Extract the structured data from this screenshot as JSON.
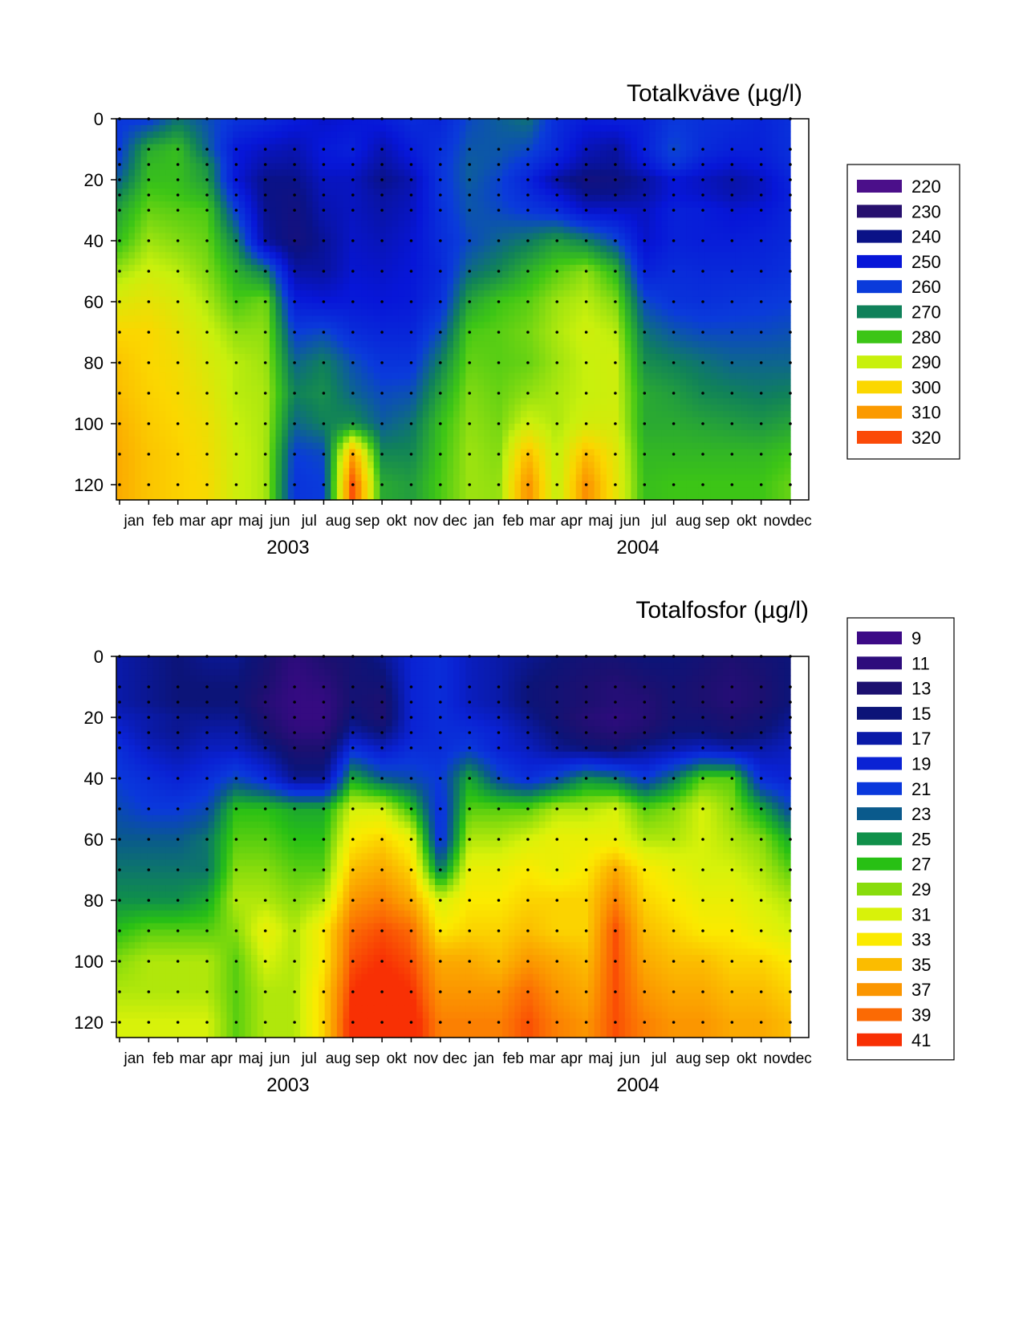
{
  "chart_data": [
    {
      "type": "heatmap",
      "title": "Totalkväve (µg/l)",
      "xlabel": "",
      "ylabel": "",
      "ylim": [
        125,
        0
      ],
      "yticks": [
        0,
        20,
        40,
        60,
        80,
        100,
        120
      ],
      "month_labels": [
        "jan",
        "feb",
        "mar",
        "apr",
        "maj",
        "jun",
        "jul",
        "aug",
        "sep",
        "okt",
        "nov",
        "dec",
        "jan",
        "feb",
        "mar",
        "apr",
        "maj",
        "jun",
        "jul",
        "aug",
        "sep",
        "okt",
        "nov",
        "dec"
      ],
      "year_labels": [
        "2003",
        "2004"
      ],
      "sample_depths": [
        0,
        10,
        15,
        20,
        25,
        30,
        40,
        50,
        60,
        70,
        80,
        90,
        100,
        110,
        120
      ],
      "sample_months": [
        0,
        1,
        2,
        3,
        4,
        5,
        6,
        7,
        8,
        9,
        10,
        11,
        12,
        13,
        14,
        15,
        16,
        17,
        18,
        19,
        20,
        21,
        22,
        23
      ],
      "legend": {
        "position": "right",
        "levels": [
          "220",
          "230",
          "240",
          "250",
          "260",
          "270",
          "280",
          "290",
          "300",
          "310",
          "320"
        ],
        "colors": [
          "#4b0f8a",
          "#27106e",
          "#0a1287",
          "#0716d8",
          "#0a3bdb",
          "#10815a",
          "#3cc516",
          "#c8f00d",
          "#fbd700",
          "#fb9a00",
          "#fb4a08"
        ]
      },
      "grid": [
        [
          259,
          259,
          268,
          263,
          258,
          256,
          252,
          248,
          250,
          252,
          256,
          254,
          262,
          265,
          268,
          256,
          252,
          253,
          253,
          259,
          257,
          256,
          254,
          257
        ],
        [
          260,
          276,
          279,
          266,
          251,
          247,
          245,
          251,
          253,
          245,
          252,
          257,
          264,
          264,
          262,
          255,
          246,
          243,
          253,
          262,
          256,
          253,
          253,
          257
        ],
        [
          262,
          278,
          279,
          272,
          251,
          244,
          243,
          250,
          250,
          243,
          249,
          258,
          265,
          263,
          258,
          251,
          243,
          242,
          250,
          259,
          252,
          249,
          251,
          256
        ],
        [
          266,
          279,
          279,
          274,
          250,
          240,
          240,
          247,
          247,
          240,
          245,
          258,
          265,
          261,
          254,
          243,
          237,
          238,
          243,
          250,
          247,
          244,
          247,
          254
        ],
        [
          271,
          281,
          280,
          277,
          255,
          240,
          238,
          246,
          247,
          243,
          246,
          258,
          264,
          261,
          256,
          250,
          241,
          241,
          244,
          250,
          248,
          245,
          247,
          253
        ],
        [
          275,
          283,
          282,
          281,
          260,
          241,
          237,
          245,
          247,
          244,
          247,
          257,
          264,
          262,
          259,
          256,
          248,
          248,
          247,
          253,
          252,
          249,
          250,
          254
        ],
        [
          279,
          287,
          285,
          283,
          270,
          243,
          236,
          242,
          248,
          246,
          249,
          256,
          262,
          266,
          269,
          274,
          270,
          262,
          248,
          253,
          252,
          252,
          253,
          255
        ],
        [
          287,
          291,
          289,
          285,
          277,
          270,
          244,
          243,
          249,
          248,
          250,
          255,
          267,
          271,
          277,
          282,
          286,
          278,
          253,
          256,
          255,
          255,
          255,
          257
        ],
        [
          294,
          296,
          293,
          288,
          281,
          284,
          252,
          250,
          251,
          250,
          251,
          257,
          275,
          280,
          282,
          287,
          289,
          285,
          262,
          258,
          257,
          258,
          259,
          260
        ],
        [
          300,
          300,
          296,
          291,
          286,
          286,
          260,
          262,
          256,
          254,
          254,
          263,
          281,
          282,
          284,
          288,
          291,
          289,
          268,
          264,
          262,
          262,
          262,
          263
        ],
        [
          303,
          300,
          298,
          293,
          289,
          287,
          266,
          270,
          263,
          258,
          258,
          270,
          283,
          282,
          283,
          287,
          290,
          291,
          272,
          270,
          268,
          266,
          266,
          266
        ],
        [
          304,
          301,
          299,
          295,
          289,
          288,
          270,
          272,
          266,
          262,
          263,
          275,
          285,
          283,
          286,
          288,
          290,
          291,
          276,
          274,
          271,
          270,
          269,
          270
        ],
        [
          306,
          302,
          300,
          297,
          290,
          288,
          266,
          270,
          272,
          265,
          268,
          279,
          286,
          284,
          291,
          288,
          292,
          292,
          276,
          276,
          275,
          274,
          273,
          275
        ],
        [
          307,
          303,
          301,
          298,
          291,
          288,
          260,
          262,
          309,
          271,
          271,
          280,
          287,
          285,
          305,
          289,
          305,
          295,
          278,
          278,
          278,
          278,
          278,
          280
        ],
        [
          307,
          303,
          301,
          299,
          291,
          288,
          258,
          260,
          320,
          276,
          274,
          281,
          287,
          286,
          312,
          289,
          312,
          296,
          279,
          280,
          280,
          280,
          280,
          283
        ]
      ]
    },
    {
      "type": "heatmap",
      "title": "Totalfosfor (µg/l)",
      "xlabel": "",
      "ylabel": "",
      "ylim": [
        125,
        0
      ],
      "yticks": [
        0,
        20,
        40,
        60,
        80,
        100,
        120
      ],
      "month_labels": [
        "jan",
        "feb",
        "mar",
        "apr",
        "maj",
        "jun",
        "jul",
        "aug",
        "sep",
        "okt",
        "nov",
        "dec",
        "jan",
        "feb",
        "mar",
        "apr",
        "maj",
        "jun",
        "jul",
        "aug",
        "sep",
        "okt",
        "nov",
        "dec"
      ],
      "year_labels": [
        "2003",
        "2004"
      ],
      "sample_depths": [
        0,
        10,
        15,
        20,
        25,
        30,
        40,
        50,
        60,
        70,
        80,
        90,
        100,
        110,
        120
      ],
      "sample_months": [
        0,
        1,
        2,
        3,
        4,
        5,
        6,
        7,
        8,
        9,
        10,
        11,
        12,
        13,
        14,
        15,
        16,
        17,
        18,
        19,
        20,
        21,
        22,
        23
      ],
      "legend": {
        "position": "right",
        "levels": [
          "9",
          "11",
          "13",
          "15",
          "17",
          "19",
          "21",
          "23",
          "25",
          "27",
          "29",
          "31",
          "33",
          "35",
          "37",
          "39",
          "41"
        ],
        "colors": [
          "#3c0a86",
          "#2d0c7c",
          "#1c1070",
          "#0c1478",
          "#0a1aa8",
          "#0a22d4",
          "#0a38dc",
          "#0a5a8c",
          "#10904a",
          "#28c014",
          "#88dc0c",
          "#d8f20a",
          "#fbea00",
          "#fbbc00",
          "#fb9600",
          "#fb6a04",
          "#f83004"
        ]
      },
      "grid": [
        [
          17,
          16,
          15,
          16,
          16,
          14,
          11,
          13,
          14,
          16,
          19,
          20,
          18,
          17,
          16,
          15,
          14,
          14,
          15,
          15,
          14,
          13,
          14,
          15
        ],
        [
          17,
          16,
          15,
          15,
          15,
          13,
          10,
          11,
          14,
          14,
          19,
          20,
          18,
          17,
          15,
          14,
          13,
          12,
          13,
          14,
          13,
          12,
          13,
          15
        ],
        [
          17,
          16,
          15,
          15,
          15,
          12,
          10,
          10,
          14,
          13,
          19,
          20,
          18,
          17,
          15,
          14,
          13,
          12,
          12,
          14,
          13,
          12,
          13,
          15
        ],
        [
          18,
          17,
          16,
          16,
          16,
          13,
          10,
          10,
          15,
          13,
          19,
          20,
          19,
          18,
          16,
          14,
          12,
          11,
          12,
          14,
          14,
          13,
          14,
          16
        ],
        [
          19,
          17,
          16,
          17,
          17,
          14,
          11,
          11,
          17,
          15,
          19,
          20,
          20,
          19,
          17,
          15,
          13,
          12,
          13,
          15,
          15,
          14,
          15,
          17
        ],
        [
          20,
          18,
          17,
          18,
          18,
          16,
          13,
          13,
          20,
          18,
          20,
          20,
          21,
          19,
          18,
          16,
          15,
          14,
          16,
          17,
          18,
          17,
          17,
          18
        ],
        [
          21,
          20,
          19,
          20,
          22,
          20,
          16,
          16,
          26,
          23,
          22,
          21,
          26,
          22,
          20,
          22,
          25,
          24,
          21,
          24,
          28,
          28,
          20,
          19
        ],
        [
          22,
          21,
          21,
          22,
          27,
          27,
          26,
          26,
          31,
          31,
          27,
          20,
          28,
          28,
          28,
          30,
          30,
          31,
          28,
          29,
          31,
          29,
          26,
          22
        ],
        [
          23,
          23,
          23,
          24,
          28,
          28,
          27,
          27,
          33,
          34,
          32,
          20,
          30,
          30,
          31,
          32,
          32,
          32,
          30,
          30,
          31,
          30,
          29,
          26
        ],
        [
          24,
          24,
          24,
          24,
          29,
          29,
          28,
          28,
          35,
          36,
          34,
          24,
          32,
          32,
          33,
          32,
          33,
          36,
          33,
          32,
          31,
          31,
          30,
          28
        ],
        [
          25,
          25,
          25,
          26,
          30,
          30,
          29,
          30,
          37,
          38,
          36,
          31,
          33,
          33,
          34,
          34,
          34,
          38,
          34,
          33,
          32,
          32,
          31,
          30
        ],
        [
          27,
          28,
          28,
          28,
          29,
          32,
          30,
          33,
          39,
          40,
          39,
          33,
          34,
          34,
          35,
          34,
          34,
          40,
          35,
          34,
          33,
          33,
          32,
          31
        ],
        [
          29,
          30,
          30,
          30,
          28,
          31,
          30,
          33,
          40,
          41,
          40,
          36,
          36,
          35,
          37,
          36,
          35,
          40,
          36,
          35,
          35,
          34,
          34,
          33
        ],
        [
          30,
          30,
          30,
          30,
          28,
          30,
          30,
          34,
          41,
          42,
          41,
          37,
          37,
          37,
          39,
          37,
          36,
          40,
          37,
          36,
          36,
          35,
          35,
          34
        ],
        [
          31,
          31,
          31,
          31,
          28,
          30,
          30,
          34,
          42,
          42,
          42,
          38,
          38,
          38,
          40,
          38,
          37,
          40,
          38,
          37,
          37,
          36,
          36,
          35
        ]
      ]
    }
  ]
}
